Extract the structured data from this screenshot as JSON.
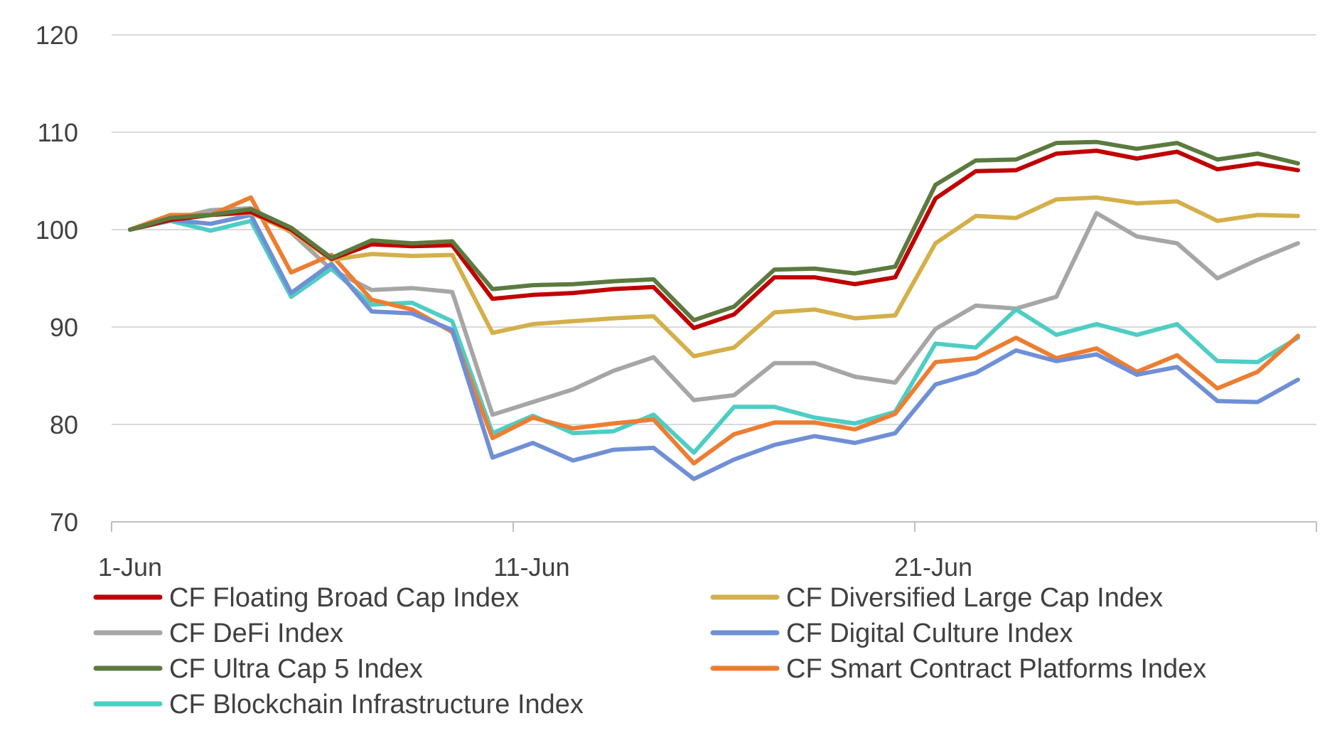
{
  "chart_data": {
    "type": "line",
    "title": "",
    "xlabel": "",
    "ylabel": "",
    "ylim": [
      70,
      120
    ],
    "yticks": [
      70,
      80,
      90,
      100,
      110,
      120
    ],
    "grid": true,
    "legend_position": "bottom",
    "x": [
      1,
      2,
      3,
      4,
      5,
      6,
      7,
      8,
      9,
      10,
      11,
      12,
      13,
      14,
      15,
      16,
      17,
      18,
      19,
      20,
      21,
      22,
      23,
      24,
      25,
      26,
      27,
      28,
      29,
      30
    ],
    "x_tick_labels": [
      {
        "x": 1,
        "label": "1-Jun"
      },
      {
        "x": 11,
        "label": "11-Jun"
      },
      {
        "x": 21,
        "label": "21-Jun"
      }
    ],
    "series": [
      {
        "name": "CF Floating Broad Cap Index",
        "color": "#c00000",
        "values": [
          100,
          101,
          101.5,
          101.8,
          100,
          97,
          98.5,
          98.3,
          98.4,
          92.9,
          93.3,
          93.5,
          93.9,
          94.1,
          89.9,
          91.3,
          95.1,
          95.1,
          94.4,
          95.1,
          103.2,
          106,
          106.1,
          107.8,
          108.1,
          107.3,
          108,
          106.2,
          106.8,
          106.1
        ]
      },
      {
        "name": "CF Diversified Large Cap Index",
        "color": "#d4af4a",
        "values": [
          100,
          101,
          101.5,
          101.7,
          99.8,
          96.9,
          97.5,
          97.3,
          97.4,
          89.4,
          90.3,
          90.6,
          90.9,
          91.1,
          87,
          87.9,
          91.5,
          91.8,
          90.9,
          91.2,
          98.6,
          101.4,
          101.2,
          103.1,
          103.3,
          102.7,
          102.9,
          100.9,
          101.5,
          101.4
        ]
      },
      {
        "name": "CF DeFi Index",
        "color": "#a6a6a6",
        "values": [
          100,
          101,
          102,
          102.2,
          99.7,
          95.9,
          93.8,
          94,
          93.6,
          81,
          82.3,
          83.6,
          85.5,
          86.9,
          82.5,
          83,
          86.3,
          86.3,
          84.9,
          84.3,
          89.8,
          92.2,
          91.9,
          93.1,
          101.7,
          99.3,
          98.6,
          95,
          96.9,
          98.6
        ]
      },
      {
        "name": "CF Digital Culture Index",
        "color": "#6f8fd6",
        "values": [
          100,
          101,
          100.6,
          101.5,
          93.5,
          96.5,
          91.6,
          91.4,
          89.7,
          76.6,
          78.1,
          76.3,
          77.4,
          77.6,
          74.4,
          76.4,
          77.9,
          78.8,
          78.1,
          79.1,
          84.1,
          85.3,
          87.6,
          86.5,
          87.2,
          85.1,
          85.9,
          82.4,
          82.3,
          84.6
        ]
      },
      {
        "name": "CF Ultra Cap 5 Index",
        "color": "#5c7a3f",
        "values": [
          100,
          101.2,
          101.5,
          102.1,
          100.2,
          97.1,
          98.9,
          98.6,
          98.8,
          93.9,
          94.3,
          94.4,
          94.7,
          94.9,
          90.7,
          92.1,
          95.9,
          96,
          95.5,
          96.2,
          104.6,
          107.1,
          107.2,
          108.9,
          109,
          108.3,
          108.9,
          107.2,
          107.8,
          106.8
        ]
      },
      {
        "name": "CF Smart Contract Platforms Index",
        "color": "#ed7d31",
        "values": [
          100,
          101.5,
          101.5,
          103.3,
          95.6,
          97.4,
          92.8,
          91.8,
          89.5,
          78.6,
          80.7,
          79.6,
          80.1,
          80.5,
          76,
          79,
          80.2,
          80.2,
          79.5,
          81.1,
          86.4,
          86.8,
          88.9,
          86.8,
          87.8,
          85.4,
          87.1,
          83.7,
          85.4,
          89.1
        ]
      },
      {
        "name": "CF Blockchain Infrastructure Index",
        "color": "#4ecdc4",
        "values": [
          100,
          100.9,
          99.9,
          100.9,
          93.1,
          96,
          92.3,
          92.5,
          90.6,
          79.1,
          80.9,
          79.1,
          79.3,
          81,
          77.1,
          81.8,
          81.8,
          80.7,
          80.1,
          81.3,
          88.3,
          87.9,
          91.8,
          89.2,
          90.3,
          89.2,
          90.3,
          86.5,
          86.4,
          88.9
        ]
      }
    ]
  }
}
